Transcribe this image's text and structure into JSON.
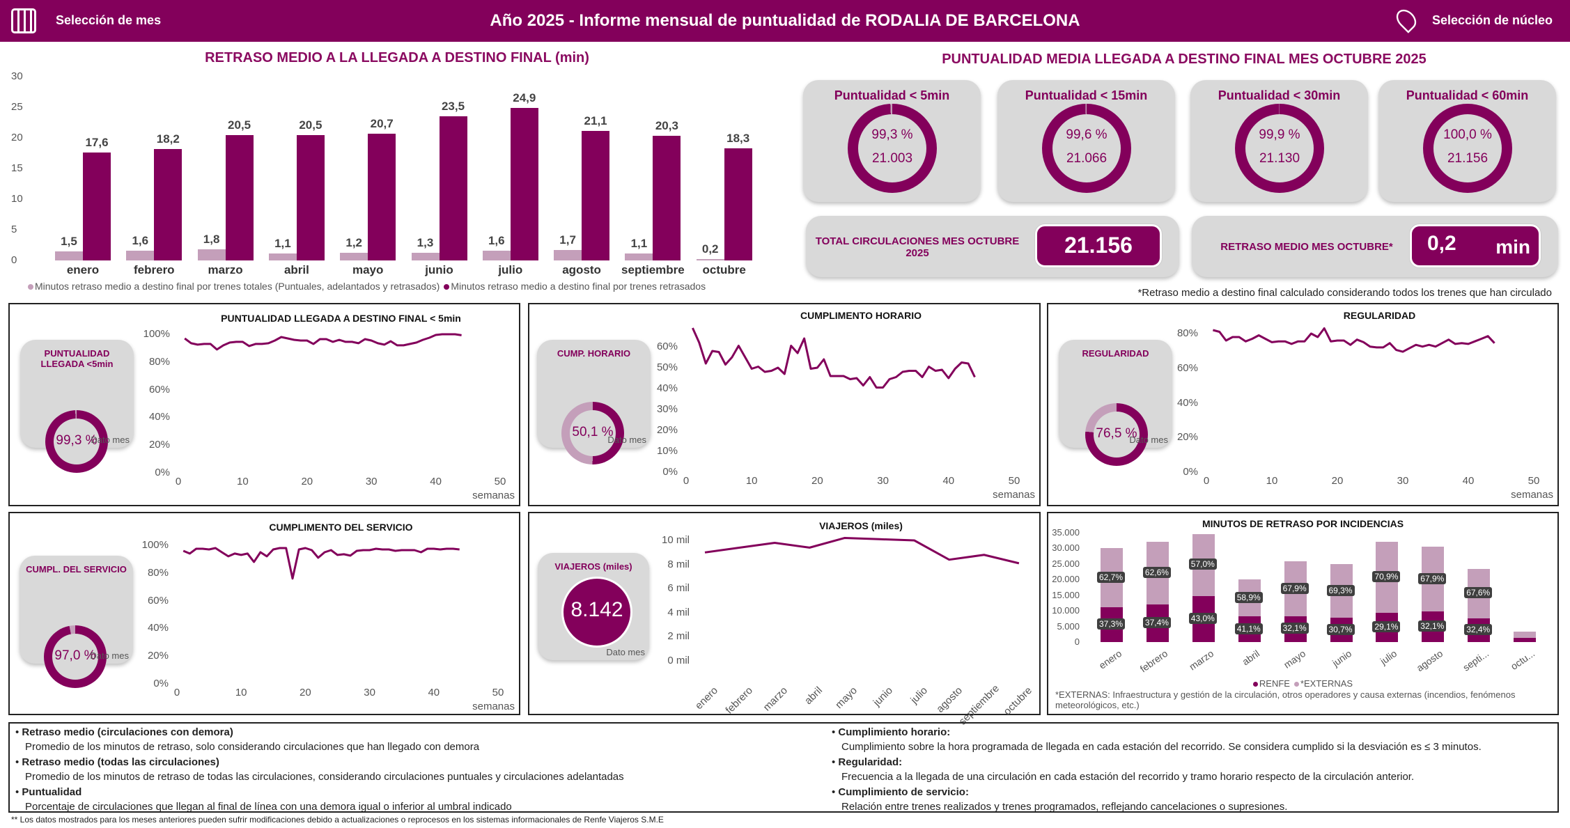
{
  "header": {
    "title": "Año 2025 - Informe mensual de puntualidad de RODALIA DE BARCELONA",
    "month_selector": "Selección de mes",
    "nucleus_selector": "Selección de núcleo",
    "bg": "#83005b"
  },
  "delay_chart": {
    "type": "bar",
    "title": "RETRASO MEDIO A LA LLEGADA A DESTINO FINAL (min)",
    "categories": [
      "enero",
      "febrero",
      "marzo",
      "abril",
      "mayo",
      "junio",
      "julio",
      "agosto",
      "septiembre",
      "octubre"
    ],
    "ylim": [
      0,
      30
    ],
    "yticks": [
      "0",
      "5",
      "10",
      "15",
      "20",
      "25",
      "30"
    ],
    "series": [
      {
        "name": "Minutos retraso medio a destino final por trenes totales (Puntuales, adelantados y retrasados)",
        "color": "#c49fba",
        "values": [
          1.5,
          1.6,
          1.8,
          1.1,
          1.2,
          1.3,
          1.6,
          1.7,
          1.1,
          0.2
        ],
        "labels": [
          "1,5",
          "1,6",
          "1,8",
          "1,1",
          "1,2",
          "1,3",
          "1,6",
          "1,7",
          "1,1",
          "0,2"
        ]
      },
      {
        "name": "Minutos retraso medio a destino final por trenes retrasados",
        "color": "#83005b",
        "values": [
          17.6,
          18.2,
          20.5,
          20.5,
          20.7,
          23.5,
          24.9,
          21.1,
          20.3,
          18.3
        ],
        "labels": [
          "17,6",
          "18,2",
          "20,5",
          "20,5",
          "20,7",
          "23,5",
          "24,9",
          "21,1",
          "20,3",
          "18,3"
        ]
      }
    ]
  },
  "punctuality": {
    "title": "PUNTUALIDAD MEDIA LLEGADA A DESTINO FINAL MES OCTUBRE 2025",
    "gauges": [
      {
        "label": "Puntualidad < 5min",
        "pct": 99.3,
        "pct_text": "99,3 %",
        "count": "21.003"
      },
      {
        "label": "Puntualidad < 15min",
        "pct": 99.6,
        "pct_text": "99,6 %",
        "count": "21.066"
      },
      {
        "label": "Puntualidad < 30min",
        "pct": 99.9,
        "pct_text": "99,9 %",
        "count": "21.130"
      },
      {
        "label": "Puntualidad < 60min",
        "pct": 100.0,
        "pct_text": "100,0 %",
        "count": "21.156"
      }
    ],
    "total_label": "TOTAL CIRCULACIONES MES OCTUBRE 2025",
    "total_value": "21.156",
    "delay_label": "RETRASO MEDIO MES OCTUBRE*",
    "delay_value": "0,2",
    "delay_unit": "min",
    "note": "*Retraso medio a destino final calculado considerando todos los trenes que han circulado"
  },
  "weekly_charts": [
    {
      "title": "PUNTUALIDAD LLEGADA A DESTINO FINAL < 5min",
      "card_label": "PUNTUALIDAD LLEGADA <5min",
      "card_value": "99,3 %",
      "card_pct": 99.3,
      "dato": "Dato mes",
      "xlabel": "semanas",
      "xticks": [
        "0",
        "10",
        "20",
        "30",
        "40",
        "50"
      ],
      "yticks": [
        "0%",
        "20%",
        "40%",
        "60%",
        "80%",
        "100%"
      ],
      "ylim": [
        0,
        100
      ],
      "xlim": [
        0,
        50
      ],
      "values": [
        97,
        93.5,
        92.5,
        93,
        93,
        89,
        92,
        94,
        94.5,
        94.5,
        91.5,
        93,
        93,
        93.5,
        95.5,
        98,
        97,
        96,
        95.5,
        95.5,
        93,
        96.5,
        96.5,
        94.5,
        96,
        94.5,
        94.5,
        93.5,
        96.5,
        95.5,
        93.5,
        92.5,
        95,
        92,
        92,
        93,
        94,
        96,
        97.5,
        99.5,
        100,
        100,
        100,
        99.3
      ]
    },
    {
      "title": "CUMPLIMENTO HORARIO",
      "card_label": "CUMP. HORARIO",
      "card_value": "50,1 %",
      "card_pct": 50.1,
      "dato": "Dato mes",
      "xlabel": "semanas",
      "xticks": [
        "0",
        "10",
        "20",
        "30",
        "40",
        "50"
      ],
      "yticks": [
        "0%",
        "10%",
        "20%",
        "30%",
        "40%",
        "50%",
        "60%"
      ],
      "ylim": [
        0,
        70
      ],
      "xlim": [
        0,
        50
      ],
      "values": [
        69,
        62,
        52,
        58,
        57.5,
        51.5,
        55,
        60.5,
        55,
        49.5,
        50.5,
        48,
        48.5,
        50,
        47,
        60.5,
        57,
        64,
        49.5,
        50,
        54,
        46,
        46,
        46,
        44.5,
        45,
        41.5,
        45.5,
        40.5,
        40.5,
        44.5,
        45.5,
        48,
        48.5,
        48.5,
        45.5,
        50.5,
        48.5,
        49,
        45,
        49.5,
        52.5,
        52,
        45.5
      ]
    },
    {
      "title": "REGULARIDAD",
      "card_label": "REGULARIDAD",
      "card_value": "76,5 %",
      "card_pct": 76.5,
      "dato": "Dato mes",
      "xlabel": "semanas",
      "xticks": [
        "0",
        "10",
        "20",
        "30",
        "40",
        "50"
      ],
      "yticks": [
        "0%",
        "20%",
        "40%",
        "60%",
        "80%"
      ],
      "ylim": [
        0,
        85
      ],
      "xlim": [
        0,
        50
      ],
      "values": [
        82,
        81,
        76,
        78,
        78,
        75.5,
        77,
        79,
        77,
        75,
        75.5,
        75.5,
        74,
        75.5,
        75.5,
        80,
        78,
        83,
        75.5,
        76,
        76,
        73.5,
        76.5,
        75,
        72.5,
        72,
        72,
        74.5,
        70.5,
        69.5,
        71.5,
        73.5,
        72.5,
        73.5,
        72.5,
        74.5,
        76.5,
        74,
        74.5,
        74,
        75.5,
        77,
        78.5,
        74.5
      ]
    },
    {
      "title": "CUMPLIMENTO DEL SERVICIO",
      "card_label": "CUMPL. DEL SERVICIO",
      "card_value": "97,0 %",
      "card_pct": 97.0,
      "dato": "Dato mes",
      "xlabel": "semanas",
      "xticks": [
        "0",
        "10",
        "20",
        "30",
        "40",
        "50"
      ],
      "yticks": [
        "0%",
        "20%",
        "40%",
        "60%",
        "80%",
        "100%"
      ],
      "ylim": [
        0,
        100
      ],
      "xlim": [
        0,
        50
      ],
      "values": [
        96,
        94,
        97.5,
        97.5,
        97,
        98,
        95,
        92,
        94,
        93,
        94,
        88,
        95,
        92,
        97,
        98,
        98,
        76,
        97,
        98,
        96.5,
        91,
        95,
        96.5,
        93,
        93.5,
        92.5,
        96,
        96.5,
        96.5,
        97.5,
        97,
        97,
        96,
        96.5,
        96.5,
        96.5,
        95,
        97.5,
        97.5,
        97,
        97.5,
        97.5,
        97
      ]
    }
  ],
  "viajeros": {
    "title": "VIAJEROS (miles)",
    "card_label": "VIAJEROS (miles)",
    "card_value": "8.142",
    "dato": "Dato mes",
    "categories": [
      "enero",
      "febrero",
      "marzo",
      "abril",
      "mayo",
      "junio",
      "julio",
      "agosto",
      "septiembre",
      "octubre"
    ],
    "yticks": [
      "0 mil",
      "2 mil",
      "4 mil",
      "6 mil",
      "8 mil",
      "10 mil"
    ],
    "ylim": [
      0,
      10
    ],
    "values": [
      9.0,
      9.4,
      9.8,
      9.4,
      10.2,
      10.1,
      10.0,
      8.4,
      8.8,
      8.1
    ]
  },
  "incidencias": {
    "type": "bar",
    "stacked": true,
    "title": "MINUTOS DE RETRASO POR INCIDENCIAS",
    "categories": [
      "enero",
      "febrero",
      "marzo",
      "abril",
      "mayo",
      "junio",
      "julio",
      "agosto",
      "septi...",
      "octu..."
    ],
    "yticks": [
      "0",
      "5.000",
      "10.000",
      "15.000",
      "20.000",
      "25.000",
      "30.000",
      "35.000"
    ],
    "ylim": [
      0,
      35000
    ],
    "series": [
      {
        "name": "RENFE",
        "color": "#83005b",
        "values": [
          11200,
          12000,
          14800,
          8200,
          8300,
          7700,
          9400,
          9800,
          7600,
          1300
        ],
        "labels": [
          "37,3%",
          "37,4%",
          "43,0%",
          "41,1%",
          "32,1%",
          "30,7%",
          "29,1%",
          "32,1%",
          "32,4%",
          ""
        ]
      },
      {
        "name": "*EXTERNAS",
        "color": "#c49fba",
        "values": [
          18800,
          20000,
          19700,
          11800,
          17500,
          17300,
          22800,
          20700,
          15900,
          2000
        ],
        "labels": [
          "62,7%",
          "62,6%",
          "57,0%",
          "58,9%",
          "67,9%",
          "69,3%",
          "70,9%",
          "67,9%",
          "67,6%",
          ""
        ]
      }
    ],
    "note": "*EXTERNAS: Infraestructura y gestión de la circulación, otros operadores y causa externas (incendios, fenómenos meteorológicos, etc.)"
  },
  "definitions": [
    {
      "term": "Retraso medio (circulaciones con demora)",
      "desc": "Promedio de los minutos de retraso, solo considerando circulaciones que han llegado con demora"
    },
    {
      "term": "Retraso medio (todas las circulaciones)",
      "desc": "Promedio de los minutos de retraso de todas las circulaciones,  considerando circulaciones puntuales y circulaciones adelantadas"
    },
    {
      "term": "Puntualidad",
      "desc": "Porcentaje de circulaciones que llegan al final de línea con una demora igual o inferior al umbral indicado"
    },
    {
      "term": "Cumplimiento horario:",
      "desc": "Cumplimiento sobre la hora programada de llegada en cada estación del recorrido. Se considera cumplido si la desviación es  ≤ 3 minutos."
    },
    {
      "term": "Regularidad:",
      "desc": "Frecuencia a la llegada de una circulación en cada estación del recorrido y tramo horario respecto de la circulación anterior."
    },
    {
      "term": "Cumplimiento de servicio:",
      "desc": "Relación entre trenes realizados y trenes programados, reflejando cancelaciones o supresiones."
    }
  ],
  "footnote": "** Los datos mostrados para los meses anteriores pueden sufrir modificaciones debido a actualizaciones o reprocesos en los sistemas informacionales de Renfe Viajeros S.M.E"
}
